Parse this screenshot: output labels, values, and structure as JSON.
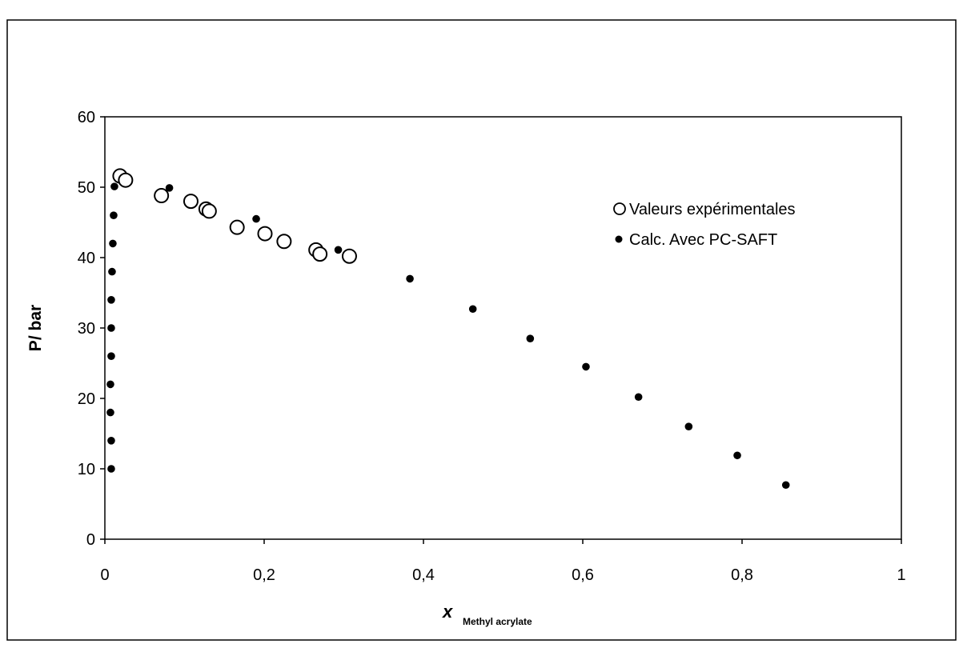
{
  "chart_data": {
    "type": "scatter",
    "xlabel_symbol": "x",
    "xlabel_subscript": "Methyl acrylate",
    "ylabel": "P/ bar",
    "xlim": [
      0,
      1
    ],
    "ylim": [
      0,
      60
    ],
    "x_ticks": [
      "0",
      "0,2",
      "0,4",
      "0,6",
      "0,8",
      "1"
    ],
    "y_ticks": [
      "0",
      "10",
      "20",
      "30",
      "40",
      "50",
      "60"
    ],
    "x_tick_values": [
      0,
      0.2,
      0.4,
      0.6,
      0.8,
      1
    ],
    "y_tick_values": [
      0,
      10,
      20,
      30,
      40,
      50,
      60
    ],
    "grid": false,
    "legend_position": "top-right",
    "series": [
      {
        "name": "Valeurs expérimentales",
        "marker": "open-circle",
        "points": [
          [
            0.019,
            51.6
          ],
          [
            0.026,
            51.0
          ],
          [
            0.071,
            48.8
          ],
          [
            0.108,
            48.0
          ],
          [
            0.127,
            46.9
          ],
          [
            0.131,
            46.6
          ],
          [
            0.166,
            44.3
          ],
          [
            0.201,
            43.4
          ],
          [
            0.225,
            42.3
          ],
          [
            0.265,
            41.1
          ],
          [
            0.27,
            40.5
          ],
          [
            0.307,
            40.2
          ]
        ]
      },
      {
        "name": "Calc. Avec PC-SAFT",
        "marker": "filled-dot",
        "points": [
          [
            0.008,
            10.0
          ],
          [
            0.008,
            14.0
          ],
          [
            0.007,
            18.0
          ],
          [
            0.007,
            22.0
          ],
          [
            0.008,
            26.0
          ],
          [
            0.008,
            30.0
          ],
          [
            0.008,
            34.0
          ],
          [
            0.009,
            38.0
          ],
          [
            0.01,
            42.0
          ],
          [
            0.011,
            46.0
          ],
          [
            0.012,
            50.1
          ],
          [
            0.081,
            49.9
          ],
          [
            0.19,
            45.5
          ],
          [
            0.293,
            41.1
          ],
          [
            0.383,
            37.0
          ],
          [
            0.462,
            32.7
          ],
          [
            0.534,
            28.5
          ],
          [
            0.604,
            24.5
          ],
          [
            0.67,
            20.2
          ],
          [
            0.733,
            16.0
          ],
          [
            0.794,
            11.9
          ],
          [
            0.855,
            7.7
          ]
        ]
      }
    ]
  }
}
